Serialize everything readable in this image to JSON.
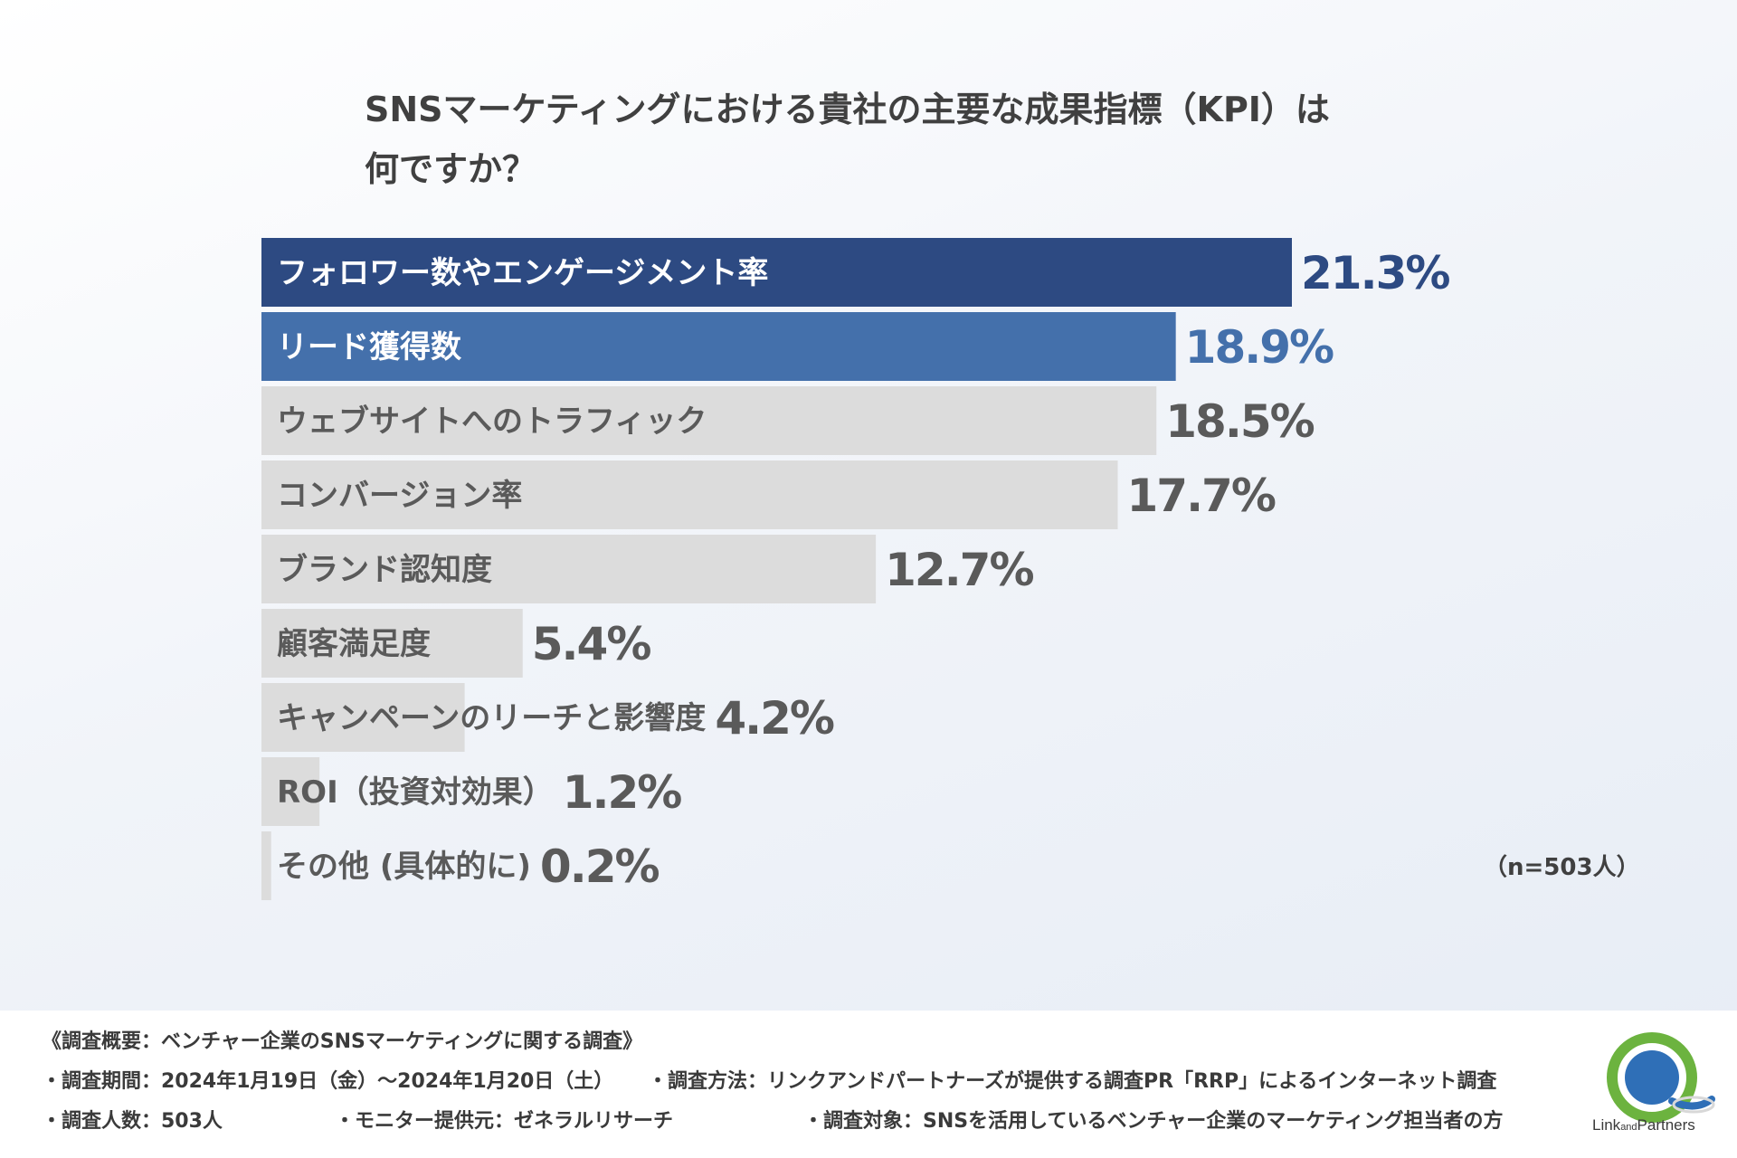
{
  "title": {
    "line1": "SNSマーケティングにおける貴社の主要な成果指標（KPI）は",
    "line2": "何ですか？"
  },
  "chart_data": {
    "type": "bar",
    "orientation": "horizontal",
    "categories": [
      "フォロワー数やエンゲージメント率",
      "リード獲得数",
      "ウェブサイトへのトラフィック",
      "コンバージョン率",
      "ブランド認知度",
      "顧客満足度",
      "キャンペーンのリーチと影響度",
      "ROI（投資対効果）",
      "その他 (具体的に)"
    ],
    "values": [
      21.3,
      18.9,
      18.5,
      17.7,
      12.7,
      5.4,
      4.2,
      1.2,
      0.2
    ],
    "value_labels": [
      "21.3%",
      "18.9%",
      "18.5%",
      "17.7%",
      "12.7%",
      "5.4%",
      "4.2%",
      "1.2%",
      "0.2%"
    ],
    "unit": "%",
    "sample_size": "（n=503人）",
    "colors": {
      "bar_1": "#2d4a82",
      "bar_2": "#4470ab",
      "bar_other": "#dcdcdc",
      "label_light": "#ffffff",
      "label_dark": "#5a5a5a",
      "value_1": "#2d4a82",
      "value_2": "#4470ab",
      "value_other": "#5a5a5a"
    }
  },
  "footer": {
    "heading": "《調査概要：ベンチャー企業のSNSマーケティングに関する調査》",
    "period": "・調査期間：2024年1月19日（金）〜2024年1月20日（土）",
    "method": "・調査方法：リンクアンドパートナーズが提供する調査PR「RRP」によるインターネット調査",
    "respondents": "・調査人数：503人",
    "provider": "・モニター提供元：ゼネラルリサーチ",
    "target": "・調査対象：SNSを活用しているベンチャー企業のマーケティング担当者の方"
  },
  "logo": {
    "text_link": "Link",
    "text_and": "and",
    "text_partners": "Partners",
    "color_blue": "#2f6fb7",
    "color_green": "#6cb33f"
  }
}
